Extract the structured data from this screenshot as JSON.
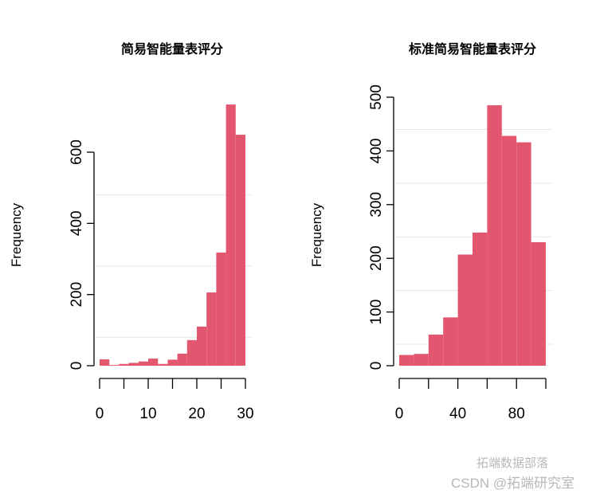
{
  "chart_data": [
    {
      "type": "bar",
      "subtype": "histogram",
      "title": "简易智能量表评分",
      "xlabel": "",
      "ylabel": "Frequency",
      "bin_edges": [
        0,
        2,
        4,
        6,
        8,
        10,
        12,
        14,
        16,
        18,
        20,
        22,
        24,
        26,
        28,
        30
      ],
      "values": [
        18,
        2,
        5,
        8,
        12,
        20,
        5,
        17,
        34,
        72,
        110,
        206,
        318,
        734,
        649
      ],
      "xticks": [
        "0",
        "10",
        "20",
        "30"
      ],
      "yticks": [
        "0",
        "200",
        "400",
        "600"
      ],
      "xlim": [
        0,
        30
      ],
      "ylim": [
        0,
        600
      ],
      "grid": "horizontal",
      "color": "#e3566f"
    },
    {
      "type": "bar",
      "subtype": "histogram",
      "title": "标准简易智能量表评分",
      "xlabel": "",
      "ylabel": "Frequency",
      "bin_edges": [
        0,
        10,
        20,
        30,
        40,
        50,
        60,
        70,
        80,
        90,
        100
      ],
      "values": [
        20,
        22,
        58,
        90,
        207,
        248,
        485,
        428,
        416,
        230
      ],
      "xticks": [
        "0",
        "40",
        "80"
      ],
      "yticks": [
        "0",
        "100",
        "200",
        "300",
        "400",
        "500"
      ],
      "xlim": [
        0,
        100
      ],
      "ylim": [
        0,
        500
      ],
      "grid": "horizontal",
      "color": "#e3566f"
    }
  ],
  "charts": [
    {
      "title": "简易智能量表评分",
      "ylabel": "Frequency"
    },
    {
      "title": "标准简易智能量表评分",
      "ylabel": "Frequency"
    }
  ],
  "watermark": {
    "line1": "拓端数据部落",
    "line2": "CSDN @拓端研究室"
  }
}
